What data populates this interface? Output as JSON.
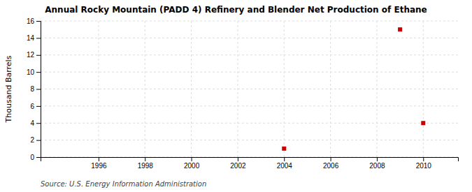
{
  "chart_data": {
    "type": "scatter",
    "title": "Annual Rocky Mountain (PADD 4) Refinery and Blender Net Production of Ethane",
    "ylabel": "Thousand Barrels",
    "source": "Source: U.S. Energy Information Administration",
    "x": [
      2004,
      2009,
      2010
    ],
    "values": [
      1,
      15,
      4
    ],
    "color": "#cc0000",
    "marker": "square",
    "xlim": [
      1993.5,
      2011.5
    ],
    "xticks": [
      1996,
      1998,
      2000,
      2002,
      2004,
      2006,
      2008,
      2010
    ],
    "ylim": [
      0,
      16
    ],
    "yticks": [
      0,
      2,
      4,
      6,
      8,
      10,
      12,
      14,
      16
    ],
    "grid": true
  }
}
